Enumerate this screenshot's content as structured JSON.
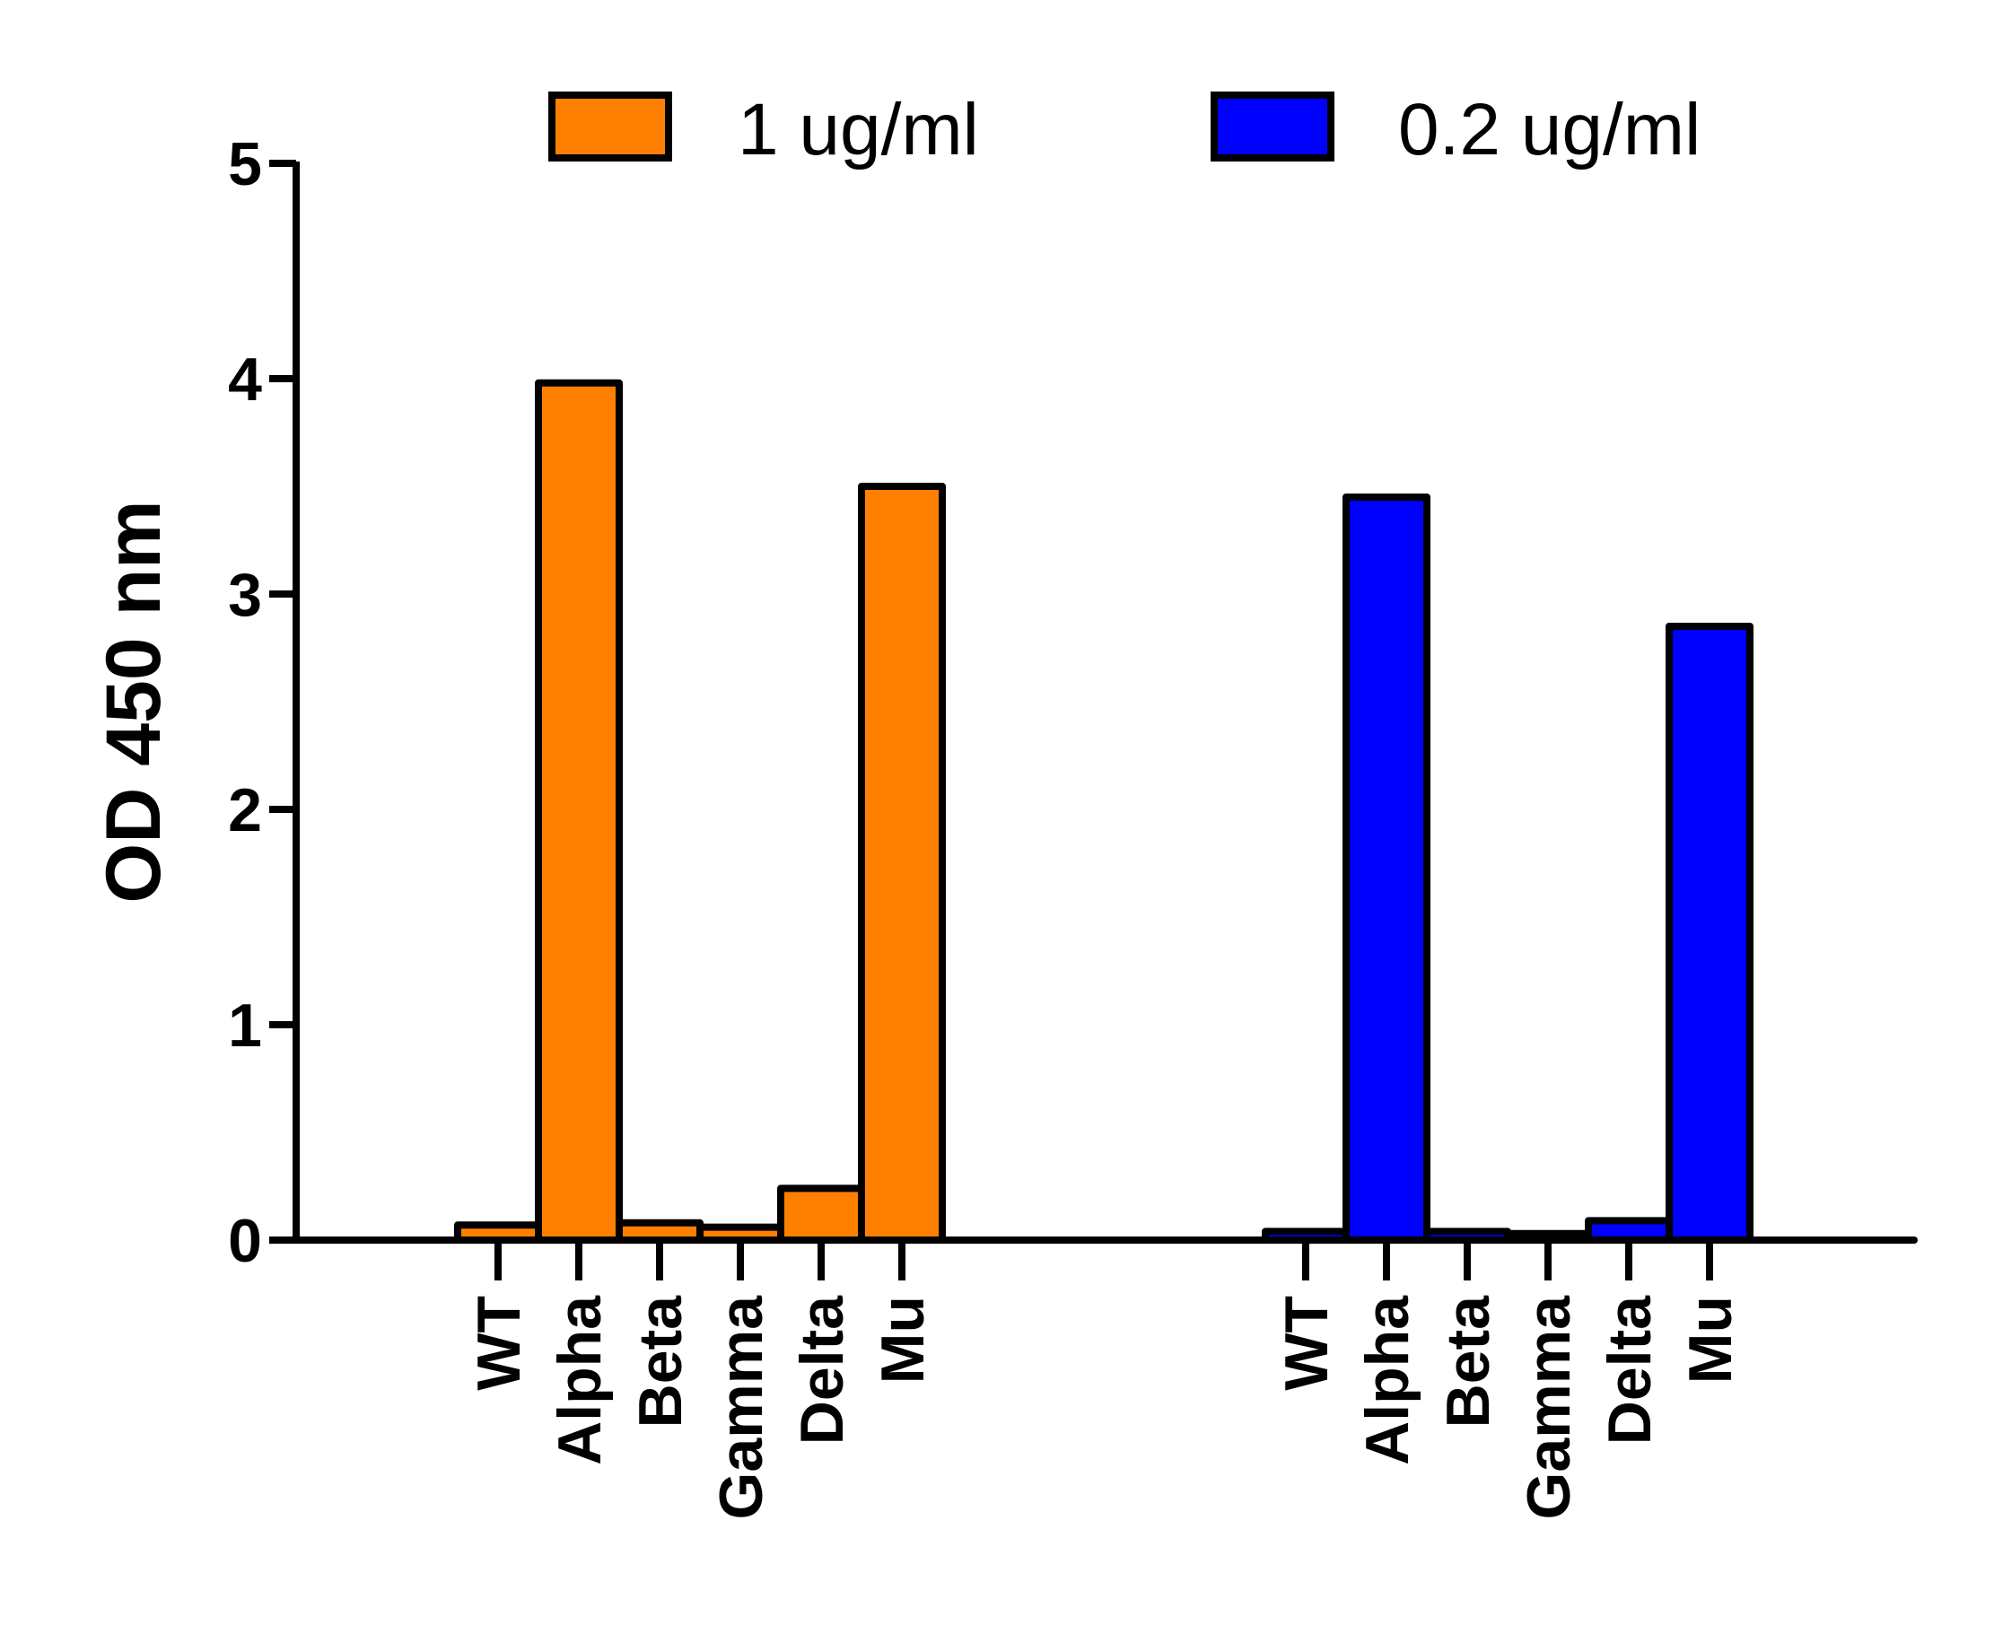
{
  "chart_data": {
    "type": "bar",
    "ylabel": "OD 450 nm",
    "ylim": [
      0,
      5
    ],
    "yticks": [
      "0",
      "1",
      "2",
      "3",
      "4",
      "5"
    ],
    "categories": [
      "WT",
      "Alpha",
      "Beta",
      "Gamma",
      "Delta",
      "Mu"
    ],
    "series": [
      {
        "name": "1 ug/ml",
        "color": "#FF8000",
        "values": [
          0.07,
          3.98,
          0.08,
          0.06,
          0.24,
          3.5
        ]
      },
      {
        "name": "0.2 ug/ml",
        "color": "#0000FF",
        "values": [
          0.04,
          3.45,
          0.04,
          0.03,
          0.09,
          2.85
        ]
      }
    ],
    "legend_position": "top",
    "grid": false
  }
}
